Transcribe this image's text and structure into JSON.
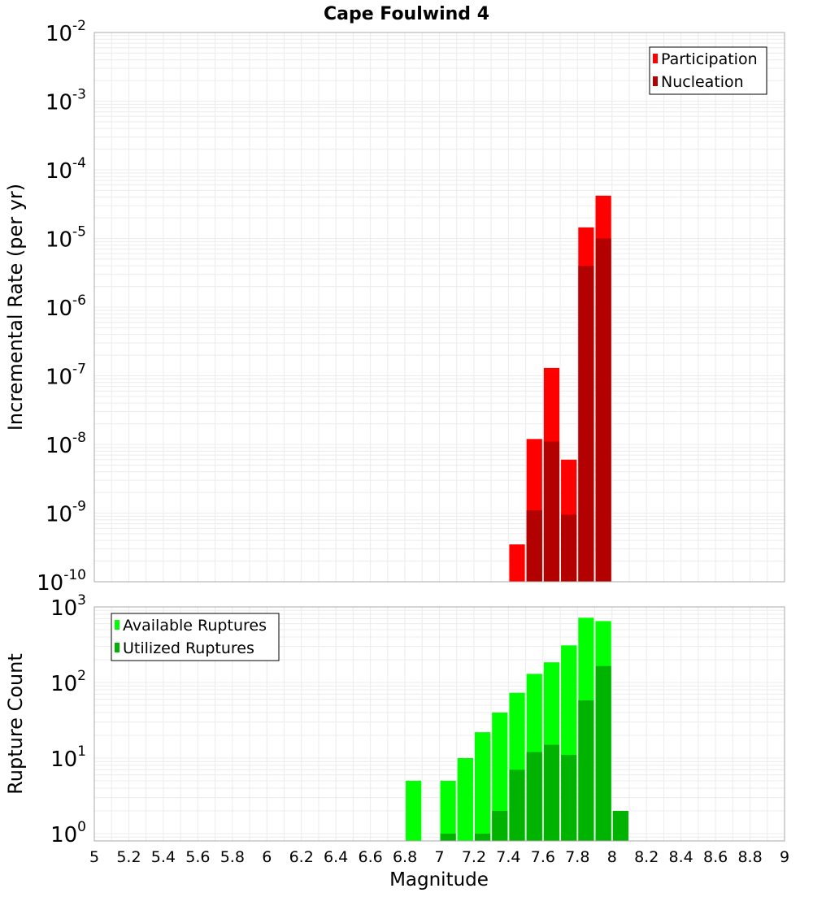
{
  "chart_data": [
    {
      "type": "bar",
      "title": "Cape Foulwind 4",
      "xlabel": "",
      "ylabel": "Incremental Rate (per yr)",
      "yscale": "log",
      "ylim": [
        1e-10,
        0.01
      ],
      "xlim": [
        5,
        9
      ],
      "yticks": [
        {
          "base": "10",
          "exp": "-10"
        },
        {
          "base": "10",
          "exp": "-9"
        },
        {
          "base": "10",
          "exp": "-8"
        },
        {
          "base": "10",
          "exp": "-7"
        },
        {
          "base": "10",
          "exp": "-6"
        },
        {
          "base": "10",
          "exp": "-5"
        },
        {
          "base": "10",
          "exp": "-4"
        },
        {
          "base": "10",
          "exp": "-3"
        },
        {
          "base": "10",
          "exp": "-2"
        }
      ],
      "grid": true,
      "legend_position": "top-right",
      "series": [
        {
          "name": "Participation",
          "color": "#ff0000",
          "x": [
            7.45,
            7.55,
            7.65,
            7.75,
            7.85,
            7.95
          ],
          "values": [
            3.5e-10,
            1.2e-08,
            1.3e-07,
            6e-09,
            1.45e-05,
            4.2e-05
          ]
        },
        {
          "name": "Nucleation",
          "color": "#b30000",
          "x": [
            7.55,
            7.65,
            7.75,
            7.85,
            7.95
          ],
          "values": [
            1.1e-09,
            1.1e-08,
            9.5e-10,
            4e-06,
            1e-05
          ]
        }
      ]
    },
    {
      "type": "bar",
      "xlabel": "Magnitude",
      "ylabel": "Rupture Count",
      "yscale": "log",
      "ylim": [
        0.8,
        1000
      ],
      "xlim": [
        5,
        9
      ],
      "xticks": [
        "5",
        "5.2",
        "5.4",
        "5.6",
        "5.8",
        "6",
        "6.2",
        "6.4",
        "6.6",
        "6.8",
        "7",
        "7.2",
        "7.4",
        "7.6",
        "7.8",
        "8",
        "8.2",
        "8.4",
        "8.6",
        "8.8",
        "9"
      ],
      "yticks": [
        {
          "base": "10",
          "exp": "0"
        },
        {
          "base": "10",
          "exp": "1"
        },
        {
          "base": "10",
          "exp": "2"
        },
        {
          "base": "10",
          "exp": "3"
        }
      ],
      "grid": true,
      "legend_position": "top-left",
      "series": [
        {
          "name": "Available Ruptures",
          "color": "#00ff00",
          "x": [
            6.85,
            7.05,
            7.15,
            7.25,
            7.35,
            7.45,
            7.55,
            7.65,
            7.75,
            7.85,
            7.95
          ],
          "values": [
            5,
            5,
            10,
            22,
            40,
            73,
            130,
            185,
            310,
            720,
            650
          ]
        },
        {
          "name": "Utilized Ruptures",
          "color": "#00b300",
          "x": [
            7.05,
            7.25,
            7.35,
            7.45,
            7.55,
            7.65,
            7.75,
            7.85,
            7.95,
            8.05
          ],
          "values": [
            1,
            1,
            2,
            7,
            12,
            15,
            11,
            58,
            165,
            2
          ]
        }
      ]
    }
  ]
}
